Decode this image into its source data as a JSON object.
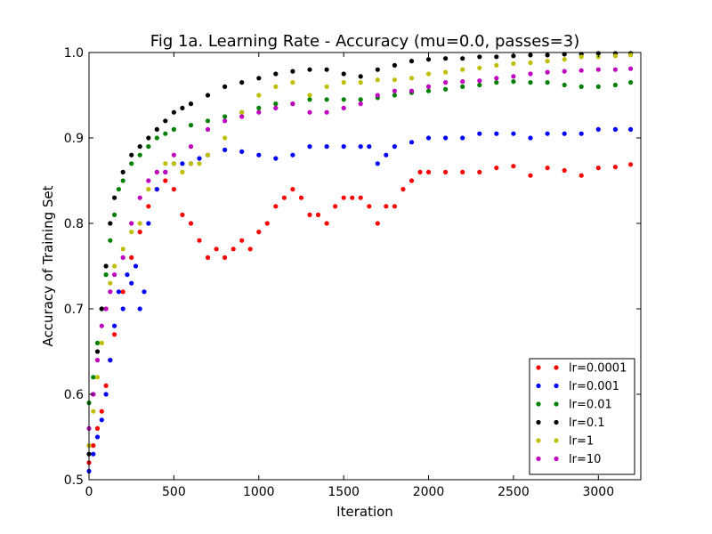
{
  "chart_data": {
    "type": "scatter",
    "title": "Fig 1a. Learning Rate - Accuracy (mu=0.0, passes=3)",
    "xlabel": "Iteration",
    "ylabel": "Accuracy of Training Set",
    "xlim": [
      0,
      3250
    ],
    "ylim": [
      0.5,
      1.0
    ],
    "xticks": [
      0,
      500,
      1000,
      1500,
      2000,
      2500,
      3000
    ],
    "yticks": [
      0.5,
      0.6,
      0.7,
      0.8,
      0.9,
      1.0
    ],
    "grid": false,
    "legend_position": "lower-right",
    "series": [
      {
        "name": "lr=0.0001",
        "color": "#ff0000",
        "x": [
          0,
          25,
          50,
          75,
          100,
          125,
          150,
          200,
          250,
          300,
          350,
          400,
          450,
          500,
          550,
          600,
          650,
          700,
          750,
          800,
          850,
          900,
          950,
          1000,
          1050,
          1100,
          1150,
          1200,
          1250,
          1300,
          1350,
          1400,
          1450,
          1500,
          1550,
          1600,
          1650,
          1700,
          1750,
          1800,
          1850,
          1900,
          1950,
          2000,
          2100,
          2200,
          2300,
          2400,
          2500,
          2600,
          2700,
          2800,
          2900,
          3000,
          3100,
          3190
        ],
        "y": [
          0.52,
          0.54,
          0.56,
          0.58,
          0.61,
          0.64,
          0.67,
          0.72,
          0.76,
          0.79,
          0.82,
          0.84,
          0.85,
          0.84,
          0.81,
          0.8,
          0.78,
          0.76,
          0.77,
          0.76,
          0.77,
          0.78,
          0.77,
          0.79,
          0.8,
          0.82,
          0.83,
          0.84,
          0.83,
          0.81,
          0.81,
          0.8,
          0.82,
          0.83,
          0.83,
          0.83,
          0.82,
          0.8,
          0.82,
          0.82,
          0.84,
          0.85,
          0.86,
          0.86,
          0.86,
          0.86,
          0.86,
          0.865,
          0.867,
          0.856,
          0.865,
          0.862,
          0.856,
          0.865,
          0.866,
          0.869
        ]
      },
      {
        "name": "lr=0.001",
        "color": "#0000ff",
        "x": [
          0,
          25,
          50,
          75,
          100,
          125,
          150,
          175,
          200,
          225,
          250,
          275,
          300,
          325,
          350,
          400,
          450,
          500,
          550,
          600,
          650,
          700,
          800,
          900,
          1000,
          1100,
          1200,
          1300,
          1400,
          1500,
          1600,
          1650,
          1700,
          1750,
          1800,
          1900,
          2000,
          2100,
          2200,
          2300,
          2400,
          2500,
          2600,
          2700,
          2800,
          2900,
          3000,
          3100,
          3190
        ],
        "y": [
          0.51,
          0.53,
          0.55,
          0.57,
          0.6,
          0.64,
          0.68,
          0.72,
          0.7,
          0.74,
          0.73,
          0.75,
          0.7,
          0.72,
          0.8,
          0.84,
          0.86,
          0.87,
          0.87,
          0.87,
          0.876,
          0.88,
          0.886,
          0.884,
          0.88,
          0.876,
          0.88,
          0.89,
          0.89,
          0.89,
          0.89,
          0.89,
          0.87,
          0.88,
          0.89,
          0.895,
          0.9,
          0.9,
          0.9,
          0.905,
          0.905,
          0.905,
          0.9,
          0.905,
          0.905,
          0.905,
          0.91,
          0.91,
          0.91
        ]
      },
      {
        "name": "lr=0.01",
        "color": "#008000",
        "x": [
          0,
          25,
          50,
          75,
          100,
          125,
          150,
          175,
          200,
          250,
          300,
          350,
          400,
          450,
          500,
          600,
          700,
          800,
          900,
          1000,
          1100,
          1200,
          1300,
          1400,
          1500,
          1600,
          1700,
          1800,
          1900,
          2000,
          2100,
          2200,
          2300,
          2400,
          2500,
          2600,
          2700,
          2800,
          2900,
          3000,
          3100,
          3190
        ],
        "y": [
          0.59,
          0.62,
          0.66,
          0.7,
          0.74,
          0.78,
          0.81,
          0.84,
          0.85,
          0.87,
          0.88,
          0.89,
          0.9,
          0.905,
          0.91,
          0.915,
          0.92,
          0.925,
          0.93,
          0.935,
          0.94,
          0.94,
          0.945,
          0.945,
          0.945,
          0.945,
          0.947,
          0.95,
          0.953,
          0.955,
          0.957,
          0.96,
          0.962,
          0.965,
          0.966,
          0.965,
          0.965,
          0.962,
          0.96,
          0.96,
          0.962,
          0.965
        ]
      },
      {
        "name": "lr=0.1",
        "color": "#000000",
        "x": [
          0,
          25,
          50,
          75,
          100,
          125,
          150,
          200,
          250,
          300,
          350,
          400,
          450,
          500,
          550,
          600,
          700,
          800,
          900,
          1000,
          1100,
          1200,
          1300,
          1400,
          1500,
          1600,
          1700,
          1800,
          1900,
          2000,
          2100,
          2200,
          2300,
          2400,
          2500,
          2600,
          2700,
          2800,
          2900,
          3000,
          3100,
          3190
        ],
        "y": [
          0.53,
          0.6,
          0.65,
          0.7,
          0.75,
          0.8,
          0.83,
          0.86,
          0.88,
          0.89,
          0.9,
          0.91,
          0.92,
          0.93,
          0.935,
          0.94,
          0.95,
          0.96,
          0.965,
          0.97,
          0.975,
          0.978,
          0.98,
          0.98,
          0.975,
          0.972,
          0.98,
          0.985,
          0.99,
          0.992,
          0.993,
          0.993,
          0.995,
          0.995,
          0.996,
          0.997,
          0.997,
          0.998,
          0.998,
          0.999,
          0.999,
          0.999
        ]
      },
      {
        "name": "lr=1",
        "color": "#bfbf00",
        "x": [
          0,
          25,
          50,
          75,
          100,
          125,
          150,
          200,
          250,
          300,
          350,
          400,
          450,
          500,
          550,
          600,
          650,
          700,
          800,
          900,
          1000,
          1100,
          1200,
          1300,
          1400,
          1500,
          1600,
          1700,
          1800,
          1900,
          2000,
          2100,
          2200,
          2300,
          2400,
          2500,
          2600,
          2700,
          2800,
          2900,
          3000,
          3100,
          3190
        ],
        "y": [
          0.54,
          0.58,
          0.62,
          0.66,
          0.7,
          0.73,
          0.75,
          0.77,
          0.79,
          0.8,
          0.84,
          0.86,
          0.87,
          0.87,
          0.86,
          0.87,
          0.87,
          0.88,
          0.9,
          0.93,
          0.95,
          0.96,
          0.965,
          0.95,
          0.96,
          0.965,
          0.965,
          0.968,
          0.968,
          0.97,
          0.975,
          0.977,
          0.98,
          0.982,
          0.985,
          0.987,
          0.988,
          0.99,
          0.992,
          0.995,
          0.995,
          0.996,
          0.997
        ]
      },
      {
        "name": "lr=10",
        "color": "#bf00bf",
        "x": [
          0,
          25,
          50,
          75,
          100,
          125,
          150,
          200,
          250,
          300,
          350,
          400,
          450,
          500,
          600,
          700,
          800,
          900,
          1000,
          1100,
          1200,
          1300,
          1400,
          1500,
          1600,
          1700,
          1800,
          1900,
          2000,
          2100,
          2200,
          2300,
          2400,
          2500,
          2600,
          2700,
          2800,
          2900,
          3000,
          3100,
          3190
        ],
        "y": [
          0.56,
          0.6,
          0.64,
          0.68,
          0.7,
          0.72,
          0.74,
          0.76,
          0.8,
          0.83,
          0.85,
          0.86,
          0.86,
          0.88,
          0.89,
          0.91,
          0.92,
          0.925,
          0.93,
          0.935,
          0.94,
          0.93,
          0.93,
          0.935,
          0.94,
          0.95,
          0.955,
          0.955,
          0.96,
          0.965,
          0.966,
          0.967,
          0.97,
          0.972,
          0.975,
          0.977,
          0.978,
          0.979,
          0.98,
          0.98,
          0.981
        ]
      }
    ]
  }
}
